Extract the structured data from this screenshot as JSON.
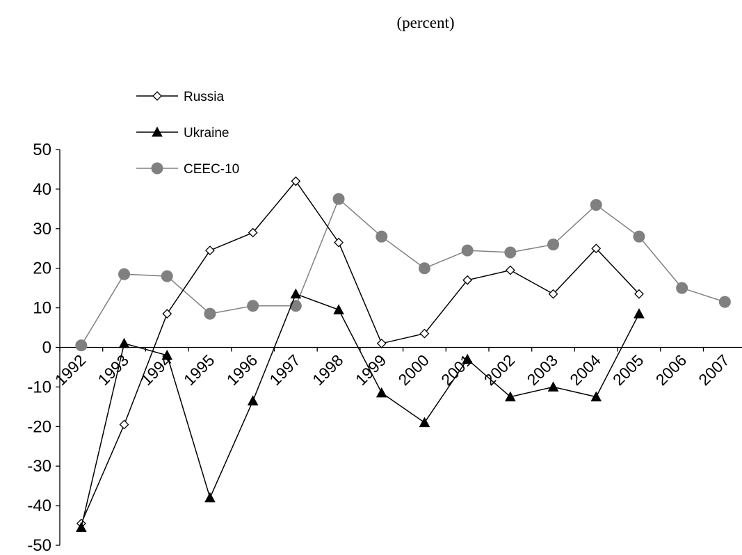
{
  "chart_data": {
    "type": "line",
    "title": "(percent)",
    "xlabel": "",
    "ylabel": "",
    "x": [
      "1992",
      "1993",
      "1994",
      "1995",
      "1996",
      "1997",
      "1998",
      "1999",
      "2000",
      "2001",
      "2002",
      "2003",
      "2004",
      "2005",
      "2006",
      "2007"
    ],
    "ylim": [
      -50,
      50
    ],
    "yticks": [
      -50,
      -40,
      -30,
      -20,
      -10,
      0,
      10,
      20,
      30,
      40,
      50
    ],
    "grid": false,
    "legend_position": "top-left",
    "series": [
      {
        "name": "Russia",
        "marker": "diamond-open",
        "line_color": "#000000",
        "marker_fill": "#ffffff",
        "marker_stroke": "#000000",
        "values": [
          -44.5,
          -19.5,
          8.5,
          24.5,
          29,
          42,
          26.5,
          1,
          3.5,
          17,
          19.5,
          13.5,
          25,
          13.5,
          null,
          null
        ]
      },
      {
        "name": "Ukraine",
        "marker": "triangle-filled",
        "line_color": "#000000",
        "marker_fill": "#000000",
        "marker_stroke": "#000000",
        "values": [
          -45.5,
          1,
          -2,
          -38,
          -13.5,
          13.5,
          9.5,
          -11.5,
          -19,
          -3,
          -12.5,
          -10,
          -12.5,
          8.5,
          null,
          null
        ]
      },
      {
        "name": "CEEC-10",
        "marker": "circle-filled",
        "line_color": "#808080",
        "marker_fill": "#808080",
        "marker_stroke": "#808080",
        "values": [
          0.5,
          18.5,
          18,
          8.5,
          10.5,
          10.5,
          37.5,
          28,
          20,
          24.5,
          24,
          26,
          36,
          28,
          15,
          11.5
        ]
      }
    ]
  }
}
